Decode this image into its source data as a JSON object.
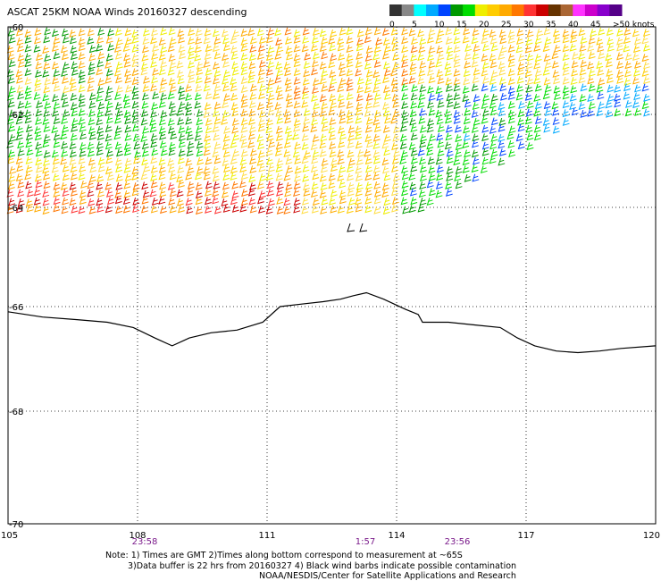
{
  "title": "ASCAT 25KM NOAA Winds 20160327 descending",
  "legend": {
    "tick_labels": [
      "0",
      "5",
      "10",
      "15",
      "20",
      "25",
      "30",
      "35",
      "40",
      "45",
      ">50 knots"
    ],
    "colors": [
      "#333333",
      "#888888",
      "#00ffff",
      "#00aaff",
      "#0044ff",
      "#009900",
      "#00dd00",
      "#eeee00",
      "#ffcc00",
      "#ffaa00",
      "#ff7700",
      "#ff3333",
      "#cc0000",
      "#663300",
      "#aa6633",
      "#ff33ff",
      "#cc00cc",
      "#8800cc",
      "#550088"
    ]
  },
  "latitude_labels": [
    "-60",
    "-62",
    "-64",
    "-66",
    "-68",
    "-70"
  ],
  "longitude_labels": [
    "105",
    "108",
    "111",
    "114",
    "117",
    "120"
  ],
  "pass_times": [
    "23:58",
    "1:57",
    "23:56"
  ],
  "notes": [
    "Note: 1) Times are GMT 2)Times along bottom correspond to measurement at ~65S",
    "3)Data buffer is 22 hrs from 20160327 4) Black wind barbs indicate possible contamination",
    "NOAA/NESDIS/Center for Satellite Applications and Research"
  ],
  "map_data": {
    "lon_range": [
      105,
      120
    ],
    "lat_range": [
      -70,
      -60
    ],
    "coastline": [
      [
        105.0,
        -66.1
      ],
      [
        105.8,
        -66.2
      ],
      [
        106.6,
        -66.25
      ],
      [
        107.3,
        -66.3
      ],
      [
        107.9,
        -66.4
      ],
      [
        108.4,
        -66.6
      ],
      [
        108.8,
        -66.75
      ],
      [
        109.2,
        -66.6
      ],
      [
        109.7,
        -66.5
      ],
      [
        110.3,
        -66.45
      ],
      [
        110.9,
        -66.3
      ],
      [
        111.3,
        -66.0
      ],
      [
        111.8,
        -65.95
      ],
      [
        112.3,
        -65.9
      ],
      [
        112.7,
        -65.85
      ],
      [
        113.0,
        -65.78
      ],
      [
        113.3,
        -65.72
      ],
      [
        113.7,
        -65.85
      ],
      [
        114.2,
        -66.05
      ],
      [
        114.5,
        -66.15
      ],
      [
        114.6,
        -66.3
      ],
      [
        115.2,
        -66.3
      ],
      [
        115.8,
        -66.35
      ],
      [
        116.4,
        -66.4
      ],
      [
        116.8,
        -66.6
      ],
      [
        117.2,
        -66.75
      ],
      [
        117.7,
        -66.85
      ],
      [
        118.2,
        -66.88
      ],
      [
        118.7,
        -66.85
      ],
      [
        119.2,
        -66.8
      ],
      [
        120.0,
        -66.75
      ]
    ]
  }
}
